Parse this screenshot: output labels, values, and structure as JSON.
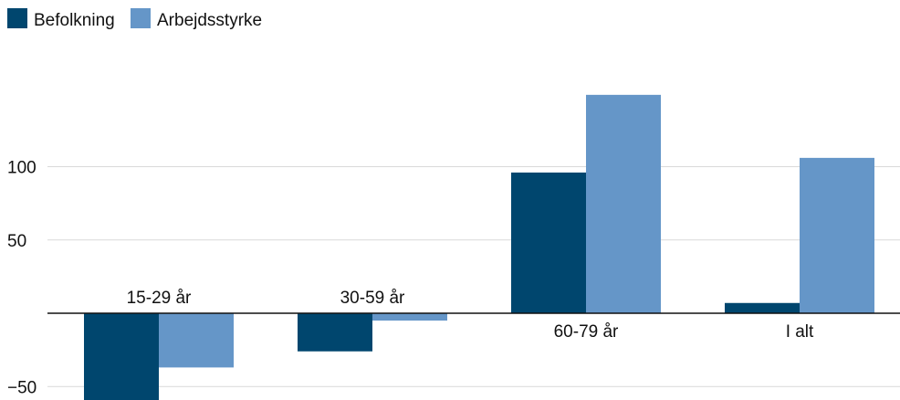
{
  "colors": {
    "befolkning": "#00466e",
    "arbejdsstyrke": "#6596c8",
    "grid": "#d9d9d9",
    "axis": "#111111"
  },
  "chart_data": {
    "type": "bar",
    "categories": [
      "15-29 år",
      "30-59 år",
      "60-79 år",
      "I alt"
    ],
    "series": [
      {
        "name": "Befolkning",
        "values": [
          -60,
          -26,
          96,
          7
        ]
      },
      {
        "name": "Arbejdsstyrke",
        "values": [
          -37,
          -5,
          149,
          106
        ]
      }
    ],
    "yticks": [
      100,
      50,
      -50
    ],
    "ytick_labels": [
      "100",
      "50",
      "−50"
    ],
    "ylim": [
      -60,
      150
    ],
    "legend_position": "top-left",
    "grid": true,
    "title": "",
    "xlabel": "",
    "ylabel": ""
  }
}
